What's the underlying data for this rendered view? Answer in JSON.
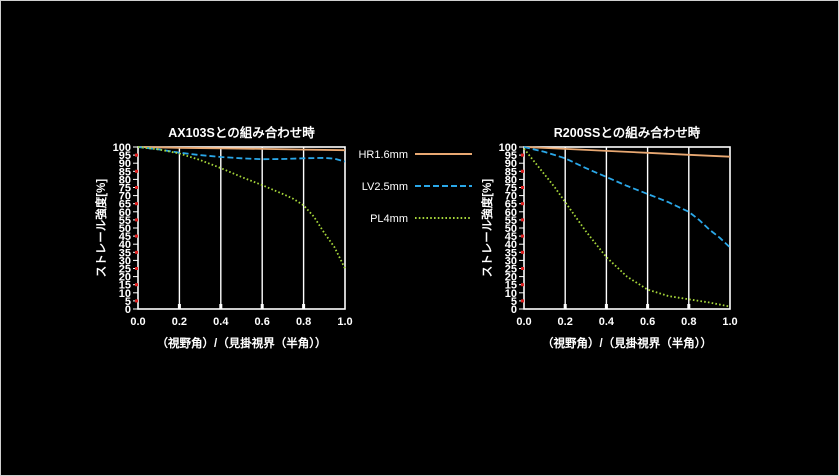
{
  "chart_data": [
    {
      "type": "line",
      "title": "AX103Sとの組み合わせ時",
      "xlabel": "（視野角）/（見掛視界（半角））",
      "ylabel": "ストレール強度[%]",
      "xlim": [
        0,
        1.0
      ],
      "ylim": [
        0,
        100
      ],
      "xticks": [
        "0.0",
        "0.2",
        "0.4",
        "0.6",
        "0.8",
        "1.0"
      ],
      "yticks": [
        "0",
        "5",
        "10",
        "15",
        "20",
        "25",
        "30",
        "35",
        "40",
        "45",
        "50",
        "55",
        "60",
        "65",
        "70",
        "75",
        "80",
        "85",
        "90",
        "95",
        "100"
      ],
      "grid": "vertical",
      "series": [
        {
          "name": "HR1.6mm",
          "style": "solid",
          "color": "#e8a872",
          "x": [
            0,
            0.2,
            0.4,
            0.6,
            0.8,
            1.0
          ],
          "y": [
            100,
            99.5,
            99.2,
            98.8,
            98.4,
            98
          ]
        },
        {
          "name": "LV2.5mm",
          "style": "dashed",
          "color": "#2aa7e8",
          "x": [
            0,
            0.1,
            0.2,
            0.3,
            0.4,
            0.5,
            0.6,
            0.7,
            0.8,
            0.9,
            0.95,
            1.0
          ],
          "y": [
            100,
            98.5,
            96.5,
            95,
            93.8,
            93,
            92.5,
            92.6,
            93,
            93.3,
            92.8,
            91
          ]
        },
        {
          "name": "PL4mm",
          "style": "dotted",
          "color": "#a6d63a",
          "x": [
            0,
            0.1,
            0.2,
            0.3,
            0.4,
            0.5,
            0.6,
            0.7,
            0.75,
            0.8,
            0.85,
            0.9,
            0.95,
            1.0
          ],
          "y": [
            100,
            98.5,
            96,
            92,
            87,
            81.5,
            76.5,
            71,
            68,
            64,
            57,
            47,
            38,
            25
          ]
        }
      ]
    },
    {
      "type": "line",
      "title": "R200SSとの組み合わせ時",
      "xlabel": "（視野角）/（見掛視界（半角））",
      "ylabel": "ストレール強度[%]",
      "xlim": [
        0,
        1.0
      ],
      "ylim": [
        0,
        100
      ],
      "xticks": [
        "0.0",
        "0.2",
        "0.4",
        "0.6",
        "0.8",
        "1.0"
      ],
      "yticks": [
        "0",
        "5",
        "10",
        "15",
        "20",
        "25",
        "30",
        "35",
        "40",
        "45",
        "50",
        "55",
        "60",
        "65",
        "70",
        "75",
        "80",
        "85",
        "90",
        "95",
        "100"
      ],
      "grid": "vertical",
      "series": [
        {
          "name": "HR1.6mm",
          "style": "solid",
          "color": "#e8a872",
          "x": [
            0,
            0.2,
            0.4,
            0.6,
            0.8,
            1.0
          ],
          "y": [
            100,
            98.8,
            97.6,
            96.4,
            95.2,
            94
          ]
        },
        {
          "name": "LV2.5mm",
          "style": "dashed",
          "color": "#2aa7e8",
          "x": [
            0,
            0.1,
            0.2,
            0.3,
            0.4,
            0.5,
            0.6,
            0.7,
            0.8,
            0.85,
            0.9,
            0.95,
            1.0
          ],
          "y": [
            100,
            97,
            93,
            87,
            81.5,
            76,
            71,
            66,
            60,
            55,
            49,
            44,
            38
          ]
        },
        {
          "name": "PL4mm",
          "style": "dotted",
          "color": "#a6d63a",
          "x": [
            0,
            0.05,
            0.1,
            0.15,
            0.2,
            0.3,
            0.4,
            0.5,
            0.6,
            0.7,
            0.8,
            0.9,
            1.0
          ],
          "y": [
            99,
            91,
            83,
            75,
            66,
            48,
            32,
            20,
            12,
            8,
            6,
            4,
            1.5
          ]
        }
      ]
    }
  ],
  "legend": [
    {
      "label": "HR1.6mm",
      "style": "solid",
      "color": "#e8a872"
    },
    {
      "label": "LV2.5mm",
      "style": "dashed",
      "color": "#2aa7e8"
    },
    {
      "label": "PL4mm",
      "style": "dotted",
      "color": "#a6d63a"
    }
  ]
}
